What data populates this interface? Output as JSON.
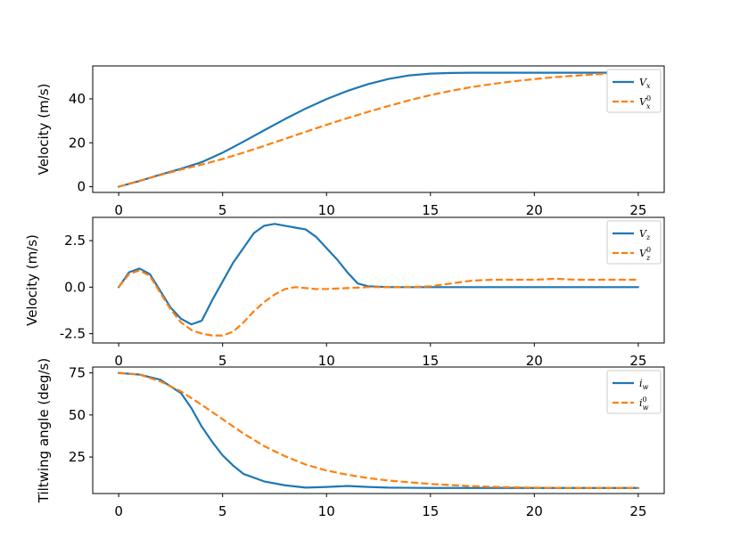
{
  "colors": {
    "series1": "#1f77b4",
    "series2": "#ff7f0e"
  },
  "chart_data": [
    {
      "type": "line",
      "ylabel": "Velocity (m/s)",
      "xlim": [
        -1.25,
        26.25
      ],
      "ylim": [
        -2.6,
        55
      ],
      "xticks": [
        0,
        5,
        10,
        15,
        20,
        25
      ],
      "xtick_labels": [
        "0",
        "5",
        "10",
        "15",
        "20",
        "25"
      ],
      "yticks": [
        0,
        20,
        40
      ],
      "ytick_labels": [
        "0",
        "20",
        "40"
      ],
      "legend_position": "upper right",
      "series": [
        {
          "name": "V_x",
          "label_main": "V",
          "label_sub": "x",
          "label_sup": "",
          "style": "solid",
          "x": [
            0,
            1,
            2,
            3,
            4,
            5,
            6,
            7,
            8,
            9,
            10,
            11,
            12,
            13,
            14,
            15,
            16,
            17,
            18,
            19,
            20,
            21,
            22,
            23,
            24,
            25
          ],
          "y": [
            0,
            2.6,
            5.5,
            8.2,
            11.2,
            15.5,
            20.5,
            25.7,
            30.8,
            35.6,
            39.9,
            43.6,
            46.7,
            49.1,
            50.7,
            51.5,
            51.8,
            51.9,
            51.9,
            51.9,
            51.9,
            51.9,
            51.9,
            51.9,
            51.9,
            51.9
          ]
        },
        {
          "name": "V_x^0",
          "label_main": "V",
          "label_sub": "x",
          "label_sup": "0",
          "style": "dashed",
          "x": [
            0,
            1,
            2,
            3,
            4,
            5,
            6,
            7,
            8,
            9,
            10,
            11,
            12,
            13,
            14,
            15,
            16,
            17,
            18,
            19,
            20,
            21,
            22,
            23,
            24,
            25
          ],
          "y": [
            0,
            2.7,
            5.3,
            7.8,
            10.1,
            12.6,
            15.5,
            18.6,
            21.8,
            25,
            28.2,
            31.2,
            34.1,
            36.8,
            39.4,
            41.7,
            43.7,
            45.4,
            46.8,
            48,
            49,
            49.9,
            50.6,
            51.2,
            51.7,
            52
          ]
        }
      ]
    },
    {
      "type": "line",
      "ylabel": "Velocity (m/s)",
      "xlim": [
        -1.25,
        26.25
      ],
      "ylim": [
        -3.0,
        3.75
      ],
      "xticks": [
        0,
        5,
        10,
        15,
        20,
        25
      ],
      "xtick_labels": [
        "0",
        "5",
        "10",
        "15",
        "20",
        "25"
      ],
      "yticks": [
        -2.5,
        0,
        2.5
      ],
      "ytick_labels": [
        "-2.5",
        "0.0",
        "2.5"
      ],
      "legend_position": "upper right",
      "series": [
        {
          "name": "V_z",
          "label_main": "V",
          "label_sub": "z",
          "label_sup": "",
          "style": "solid",
          "x": [
            0,
            0.5,
            1,
            1.5,
            2,
            2.5,
            3,
            3.5,
            4,
            4.5,
            5,
            5.5,
            6,
            6.5,
            7,
            7.5,
            8,
            8.5,
            9,
            9.5,
            10,
            10.5,
            11,
            11.5,
            12,
            13,
            14,
            15,
            20,
            25
          ],
          "y": [
            0,
            0.8,
            1.0,
            0.7,
            -0.2,
            -1.1,
            -1.7,
            -2.0,
            -1.8,
            -0.7,
            0.3,
            1.3,
            2.1,
            2.9,
            3.3,
            3.4,
            3.3,
            3.2,
            3.1,
            2.7,
            2.1,
            1.5,
            0.8,
            0.2,
            0.05,
            0,
            0,
            0,
            0,
            0
          ]
        },
        {
          "name": "V_z^0",
          "label_main": "V",
          "label_sub": "z",
          "label_sup": "0",
          "style": "dashed",
          "x": [
            0,
            0.5,
            1,
            1.5,
            2,
            2.5,
            3,
            3.5,
            4,
            4.5,
            5,
            5.5,
            6,
            6.5,
            7,
            7.5,
            8,
            8.5,
            9,
            9.5,
            10,
            11,
            12,
            13,
            14,
            15,
            16,
            17,
            18,
            19,
            20,
            21,
            22,
            23,
            24,
            25
          ],
          "y": [
            0,
            0.7,
            0.9,
            0.6,
            -0.3,
            -1.2,
            -1.9,
            -2.3,
            -2.5,
            -2.6,
            -2.6,
            -2.4,
            -1.9,
            -1.3,
            -0.8,
            -0.4,
            -0.1,
            0,
            -0.05,
            -0.1,
            -0.1,
            -0.05,
            0,
            0,
            0,
            0.05,
            0.2,
            0.35,
            0.4,
            0.4,
            0.4,
            0.45,
            0.4,
            0.4,
            0.4,
            0.4
          ]
        }
      ]
    },
    {
      "type": "line",
      "ylabel": "Tiltwing angle (deg/s)",
      "xlim": [
        -1.25,
        26.25
      ],
      "ylim": [
        3.3,
        78.5
      ],
      "xticks": [
        0,
        5,
        10,
        15,
        20,
        25
      ],
      "xtick_labels": [
        "0",
        "5",
        "10",
        "15",
        "20",
        "25"
      ],
      "yticks": [
        25,
        50,
        75
      ],
      "ytick_labels": [
        "25",
        "50",
        "75"
      ],
      "legend_position": "upper right",
      "series": [
        {
          "name": "i_w",
          "label_main": "i",
          "label_sub": "w",
          "label_sup": "",
          "style": "solid",
          "x": [
            0,
            1,
            2,
            3,
            3.5,
            4,
            4.5,
            5,
            5.5,
            6,
            7,
            8,
            9,
            10,
            11,
            12,
            13,
            14,
            15,
            20,
            25
          ],
          "y": [
            75,
            74,
            71,
            63,
            54,
            43,
            34,
            26,
            20,
            15,
            10.5,
            8.2,
            6.8,
            7.2,
            7.8,
            7.2,
            6.8,
            6.7,
            6.6,
            6.6,
            6.6
          ]
        },
        {
          "name": "i_w^0",
          "label_main": "i",
          "label_sub": "w",
          "label_sup": "0",
          "style": "dashed",
          "x": [
            0,
            1,
            2,
            3,
            4,
            5,
            6,
            7,
            8,
            9,
            10,
            11,
            12,
            13,
            14,
            15,
            16,
            17,
            18,
            19,
            20,
            21,
            22,
            23,
            24,
            25
          ],
          "y": [
            75,
            74,
            70,
            64,
            56,
            47.5,
            39,
            31.5,
            25.5,
            20.5,
            17,
            14.5,
            12.5,
            11,
            10,
            9,
            8.3,
            7.7,
            7.3,
            7,
            6.8,
            6.7,
            6.6,
            6.6,
            6.6,
            6.6
          ]
        }
      ]
    }
  ]
}
